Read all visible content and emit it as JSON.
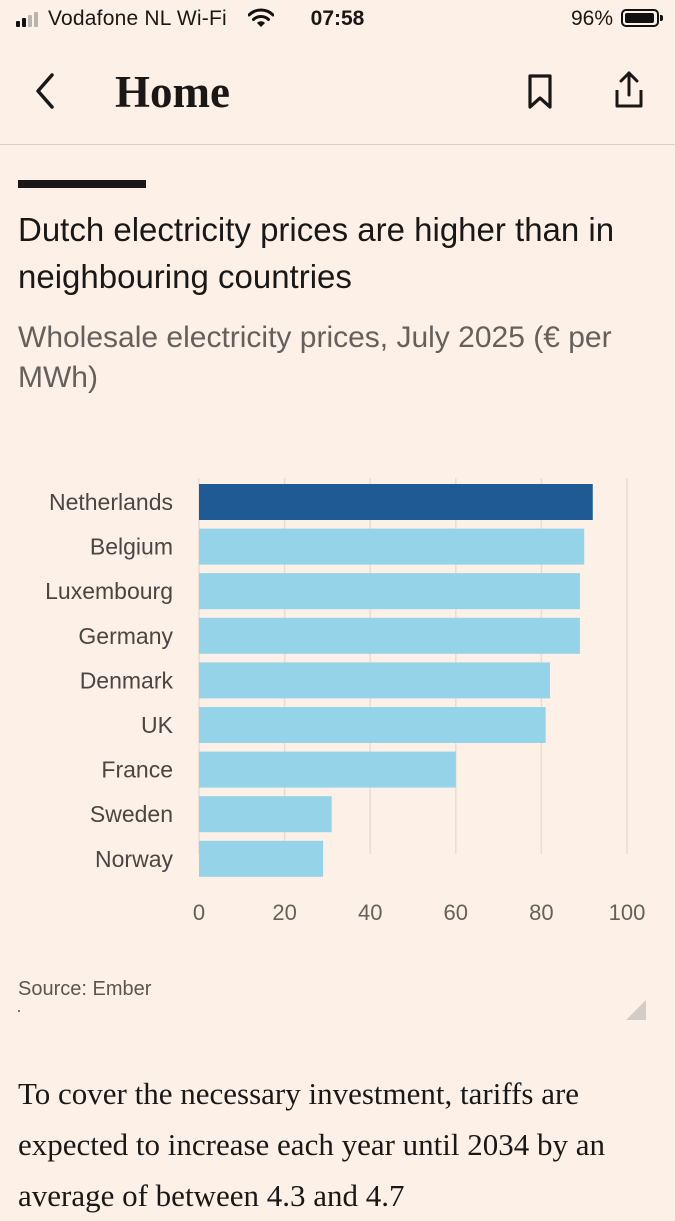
{
  "status_bar": {
    "carrier": "Vodafone NL Wi-Fi",
    "time": "07:58",
    "battery": "96%",
    "battery_level": 0.96,
    "signal_bars_active": 2,
    "signal_bars_total": 4
  },
  "nav": {
    "back_icon": "chevron-left-icon",
    "title": "Home",
    "bookmark_icon": "bookmark-icon",
    "share_icon": "share-icon"
  },
  "article": {
    "chart_title": "Dutch electricity prices are higher than in neighbouring countries",
    "chart_subtitle": "Wholesale electricity prices, July 2025 (€ per MWh)",
    "source": "Source: Ember",
    "body_text": "To cover the necessary investment, tariffs are expected to increase each year until 2034 by an average of between 4.3 and 4.7"
  },
  "colors": {
    "background": "#fdf1e7",
    "highlight_bar": "#1f5a94",
    "other_bars": "#94d3e8",
    "gridline": "#e6ddd5"
  },
  "chart_data": {
    "type": "bar",
    "orientation": "horizontal",
    "title": "Dutch electricity prices are higher than in neighbouring countries",
    "subtitle": "Wholesale electricity prices, July 2025 (€ per MWh)",
    "categories": [
      "Netherlands",
      "Belgium",
      "Luxembourg",
      "Germany",
      "Denmark",
      "UK",
      "France",
      "Sweden",
      "Norway"
    ],
    "values": [
      92,
      90,
      89,
      89,
      82,
      81,
      60,
      31,
      29
    ],
    "highlight": "Netherlands",
    "xlim": [
      0,
      100
    ],
    "xticks": [
      0,
      20,
      40,
      60,
      80,
      100
    ],
    "grid": true,
    "xlabel": "",
    "ylabel": ""
  }
}
